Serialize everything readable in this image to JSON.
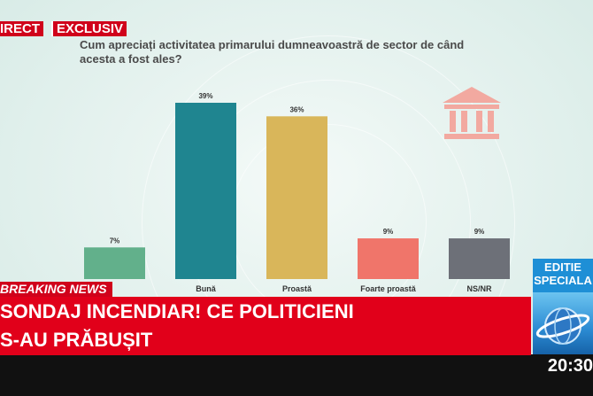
{
  "banner": {
    "direct_label": "IRECT",
    "exclusive_label": "EXCLUSIV"
  },
  "question": "Cum apreciați activitatea primarului dumneavoastră de sector de când acesta a fost ales?",
  "chart_data": {
    "type": "bar",
    "title": "Cum apreciați activitatea primarului dumneavoastră de sector de când acesta a fost ales?",
    "categories": [
      "",
      "Bună",
      "Proastă",
      "Foarte proastă",
      "NS/NR"
    ],
    "values": [
      7,
      39,
      36,
      9,
      9
    ],
    "value_labels": [
      "7%",
      "39%",
      "36%",
      "9%",
      "9%"
    ],
    "colors": [
      "#62b08b",
      "#1f8590",
      "#d9b65a",
      "#f0756a",
      "#6d7078"
    ],
    "ylim": [
      0,
      40
    ],
    "grid": false
  },
  "icon": {
    "name": "bank-icon",
    "color": "#f2a9a0"
  },
  "ticker": {
    "breaking_label": "BREAKING NEWS",
    "headline_line1": "SONDAJ INCENDIAR! CE POLITICIENI",
    "headline_line2": "S-AU PRĂBUȘIT"
  },
  "edition": {
    "line1": "EDITIE",
    "line2": "SPECIALA"
  },
  "clock": "20:30",
  "colors": {
    "accent": "#d0021b",
    "edition_blue": "#1e8fd6"
  }
}
